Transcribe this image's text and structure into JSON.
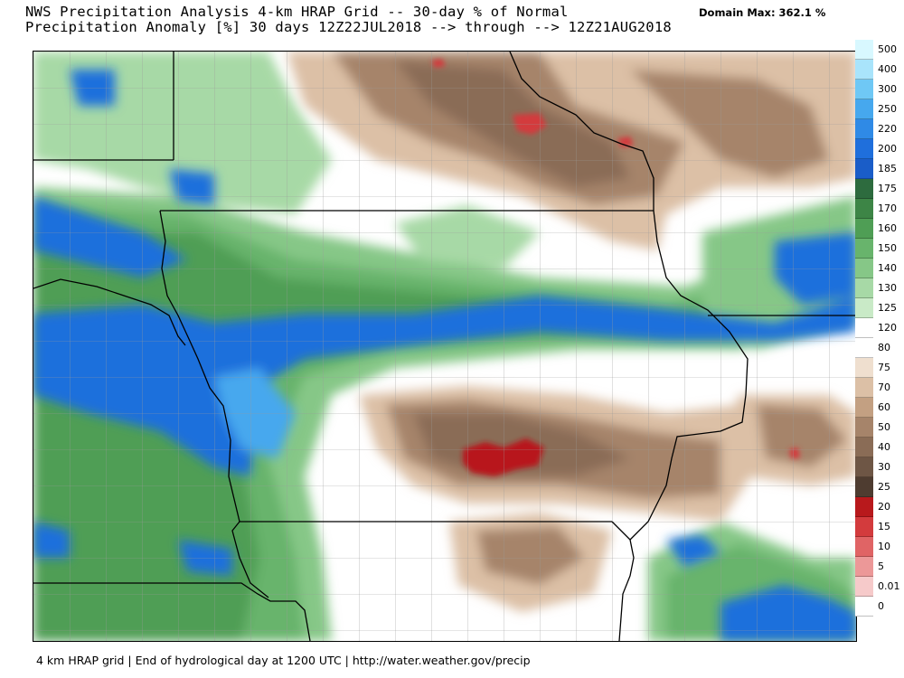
{
  "header": {
    "title_line1": "NWS Precipitation Analysis 4-km HRAP Grid -- 30-day % of Normal",
    "title_line2": "Precipitation Anomaly [%] 30 days 12Z22JUL2018 --> through --> 12Z21AUG2018",
    "domain_max": "Domain Max: 362.1 %"
  },
  "footer": {
    "text": "4 km HRAP grid | End of hydrological day at 1200 UTC | http://water.weather.gov/precip"
  },
  "legend": {
    "items": [
      {
        "label": "500",
        "color": "#d8f8ff"
      },
      {
        "label": "400",
        "color": "#a9e4fb"
      },
      {
        "label": "300",
        "color": "#6fc8f5"
      },
      {
        "label": "250",
        "color": "#46a8ee"
      },
      {
        "label": "220",
        "color": "#2f8ae6"
      },
      {
        "label": "200",
        "color": "#1f6fdc"
      },
      {
        "label": "185",
        "color": "#1a5dc8"
      },
      {
        "label": "175",
        "color": "#2d6b3e"
      },
      {
        "label": "170",
        "color": "#3d8546"
      },
      {
        "label": "160",
        "color": "#4f9e55"
      },
      {
        "label": "150",
        "color": "#68b46c"
      },
      {
        "label": "140",
        "color": "#86c787"
      },
      {
        "label": "130",
        "color": "#a7d9a6"
      },
      {
        "label": "125",
        "color": "#c9eac7"
      },
      {
        "label": "120",
        "color": "#ffffff"
      },
      {
        "label": "80",
        "color": "#ffffff"
      },
      {
        "label": "75",
        "color": "#efdfcf"
      },
      {
        "label": "70",
        "color": "#dcc0a6"
      },
      {
        "label": "60",
        "color": "#c3a082"
      },
      {
        "label": "50",
        "color": "#a6846a"
      },
      {
        "label": "40",
        "color": "#8a6c56"
      },
      {
        "label": "30",
        "color": "#6e5645"
      },
      {
        "label": "25",
        "color": "#4e3c30"
      },
      {
        "label": "20",
        "color": "#b8191c"
      },
      {
        "label": "15",
        "color": "#d33b3d"
      },
      {
        "label": "10",
        "color": "#e06465"
      },
      {
        "label": "5",
        "color": "#ec9898"
      },
      {
        "label": "0.01",
        "color": "#f6caca"
      },
      {
        "label": "0",
        "color": "#ffffff"
      }
    ]
  }
}
